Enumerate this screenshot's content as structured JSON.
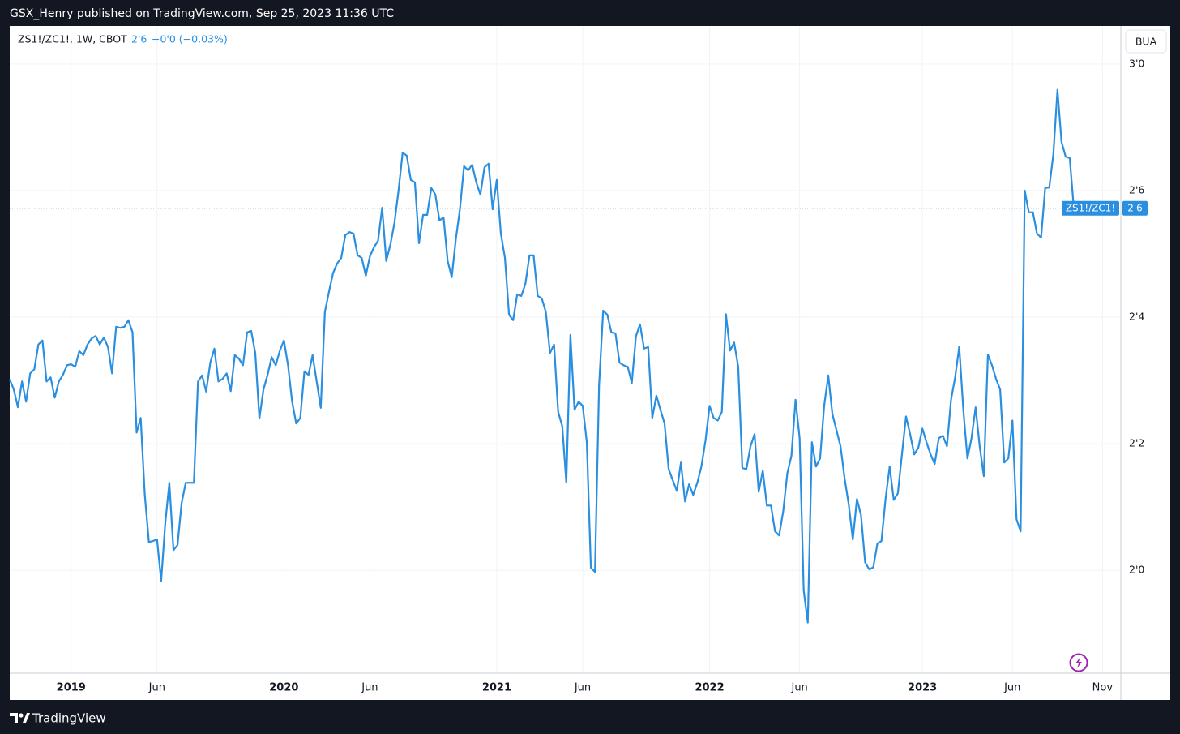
{
  "header": {
    "text": "GSX_Henry published on TradingView.com, Sep 25, 2023 11:36 UTC"
  },
  "footer": {
    "brand": "TradingView"
  },
  "chart_data": {
    "type": "line",
    "legend_title": "ZS1!/ZC1!, 1W, CBOT",
    "legend_price": "2'6",
    "legend_change": "−0'0 (−0.03%)",
    "scale_button": "BUA",
    "last_price_label": "2'6",
    "grid": true,
    "ylim": [
      1.797,
      3.075
    ],
    "yticks": [
      {
        "value": 2.0,
        "label": "2'0"
      },
      {
        "value": 2.25,
        "label": "2'2"
      },
      {
        "value": 2.5,
        "label": "2'4"
      },
      {
        "value": 2.75,
        "label": "2'6"
      },
      {
        "value": 3.0,
        "label": "3'0"
      }
    ],
    "categories": [
      null,
      null,
      null,
      null,
      null,
      null,
      null,
      null,
      null,
      null,
      null,
      null,
      null,
      null,
      null,
      "2019",
      null,
      null,
      null,
      null,
      null,
      null,
      null,
      null,
      null,
      null,
      null,
      null,
      null,
      null,
      null,
      null,
      null,
      null,
      null,
      null,
      "Jun",
      null,
      null,
      null,
      null,
      null,
      null,
      null,
      null,
      null,
      null,
      null,
      null,
      null,
      null,
      null,
      null,
      null,
      null,
      null,
      null,
      null,
      null,
      null,
      null,
      null,
      null,
      null,
      null,
      null,
      null,
      "2020",
      null,
      null,
      null,
      null,
      null,
      null,
      null,
      null,
      null,
      null,
      null,
      null,
      null,
      null,
      null,
      null,
      null,
      null,
      null,
      null,
      "Jun",
      null,
      null,
      null,
      null,
      null,
      null,
      null,
      null,
      null,
      null,
      null,
      null,
      null,
      null,
      null,
      null,
      null,
      null,
      null,
      null,
      null,
      null,
      null,
      null,
      null,
      null,
      null,
      null,
      null,
      null,
      "2021",
      null,
      null,
      null,
      null,
      null,
      null,
      null,
      null,
      null,
      null,
      null,
      null,
      null,
      null,
      null,
      null,
      null,
      null,
      null,
      null,
      "Jun",
      null,
      null,
      null,
      null,
      null,
      null,
      null,
      null,
      null,
      null,
      null,
      null,
      null,
      null,
      null,
      null,
      null,
      null,
      null,
      null,
      null,
      null,
      null,
      null,
      null,
      null,
      null,
      null,
      null,
      null,
      "2022",
      null,
      null,
      null,
      null,
      null,
      null,
      null,
      null,
      null,
      null,
      null,
      null,
      null,
      null,
      null,
      null,
      null,
      null,
      null,
      null,
      null,
      "Jun",
      null,
      null,
      null,
      null,
      null,
      null,
      null,
      null,
      null,
      null,
      null,
      null,
      null,
      null,
      null,
      null,
      null,
      null,
      null,
      null,
      null,
      null,
      null,
      null,
      null,
      null,
      null,
      null,
      null,
      "2023",
      null,
      null,
      null,
      null,
      null,
      null,
      null,
      null,
      null,
      null,
      null,
      null,
      null,
      null,
      null,
      null,
      null,
      null,
      null,
      null,
      null,
      "Jun",
      null,
      null,
      null,
      null,
      null,
      null,
      null,
      null,
      null,
      null,
      null,
      null,
      null,
      null,
      null,
      null,
      null,
      null,
      null,
      null,
      null,
      "Nov",
      null,
      null,
      null,
      null
    ],
    "series": [
      {
        "name": "ZS1!/ZC1!",
        "color": "#2a8fe0",
        "values": [
          2.377,
          2.357,
          2.322,
          2.373,
          2.333,
          2.389,
          2.397,
          2.446,
          2.454,
          2.373,
          2.381,
          2.341,
          2.373,
          2.386,
          2.405,
          2.407,
          2.402,
          2.433,
          2.425,
          2.446,
          2.458,
          2.463,
          2.446,
          2.46,
          2.441,
          2.389,
          2.481,
          2.479,
          2.481,
          2.494,
          2.47,
          2.272,
          2.301,
          2.149,
          2.056,
          2.058,
          2.061,
          1.979,
          2.093,
          2.173,
          2.04,
          2.05,
          2.133,
          2.173,
          2.173,
          2.173,
          2.373,
          2.385,
          2.353,
          2.41,
          2.438,
          2.373,
          2.378,
          2.389,
          2.354,
          2.425,
          2.418,
          2.405,
          2.47,
          2.473,
          2.429,
          2.3,
          2.357,
          2.386,
          2.421,
          2.405,
          2.434,
          2.454,
          2.405,
          2.333,
          2.29,
          2.301,
          2.393,
          2.386,
          2.425,
          2.373,
          2.321,
          2.51,
          2.55,
          2.587,
          2.606,
          2.617,
          2.662,
          2.668,
          2.665,
          2.622,
          2.617,
          2.582,
          2.62,
          2.638,
          2.651,
          2.716,
          2.611,
          2.643,
          2.686,
          2.75,
          2.825,
          2.819,
          2.771,
          2.766,
          2.646,
          2.702,
          2.702,
          2.755,
          2.742,
          2.691,
          2.697,
          2.611,
          2.579,
          2.654,
          2.713,
          2.798,
          2.79,
          2.801,
          2.766,
          2.742,
          2.796,
          2.803,
          2.713,
          2.771,
          2.665,
          2.617,
          2.505,
          2.494,
          2.545,
          2.542,
          2.566,
          2.622,
          2.622,
          2.542,
          2.537,
          2.51,
          2.429,
          2.446,
          2.313,
          2.285,
          2.173,
          2.465,
          2.317,
          2.333,
          2.325,
          2.253,
          2.005,
          1.997,
          2.365,
          2.513,
          2.505,
          2.47,
          2.468,
          2.41,
          2.405,
          2.402,
          2.37,
          2.462,
          2.486,
          2.438,
          2.441,
          2.301,
          2.345,
          2.317,
          2.29,
          2.2,
          2.178,
          2.157,
          2.213,
          2.136,
          2.17,
          2.149,
          2.173,
          2.205,
          2.256,
          2.325,
          2.301,
          2.296,
          2.313,
          2.506,
          2.434,
          2.45,
          2.402,
          2.202,
          2.2,
          2.245,
          2.269,
          2.155,
          2.197,
          2.128,
          2.128,
          2.077,
          2.069,
          2.117,
          2.192,
          2.226,
          2.337,
          2.261,
          1.96,
          1.897,
          2.253,
          2.205,
          2.221,
          2.325,
          2.385,
          2.309,
          2.277,
          2.245,
          2.181,
          2.13,
          2.061,
          2.141,
          2.109,
          2.016,
          2.002,
          2.006,
          2.053,
          2.058,
          2.141,
          2.205,
          2.139,
          2.152,
          2.229,
          2.304,
          2.269,
          2.229,
          2.242,
          2.28,
          2.253,
          2.229,
          2.21,
          2.261,
          2.266,
          2.245,
          2.337,
          2.381,
          2.442,
          2.317,
          2.221,
          2.261,
          2.322,
          2.245,
          2.186,
          2.426,
          2.405,
          2.378,
          2.357,
          2.213,
          2.221,
          2.296,
          2.101,
          2.077,
          2.75,
          2.707,
          2.707,
          2.665,
          2.657,
          2.755,
          2.756,
          2.822,
          2.949,
          2.846,
          2.817,
          2.814,
          2.715,
          null,
          null,
          null,
          null,
          null,
          null,
          null,
          null,
          null,
          null,
          null
        ]
      }
    ]
  }
}
